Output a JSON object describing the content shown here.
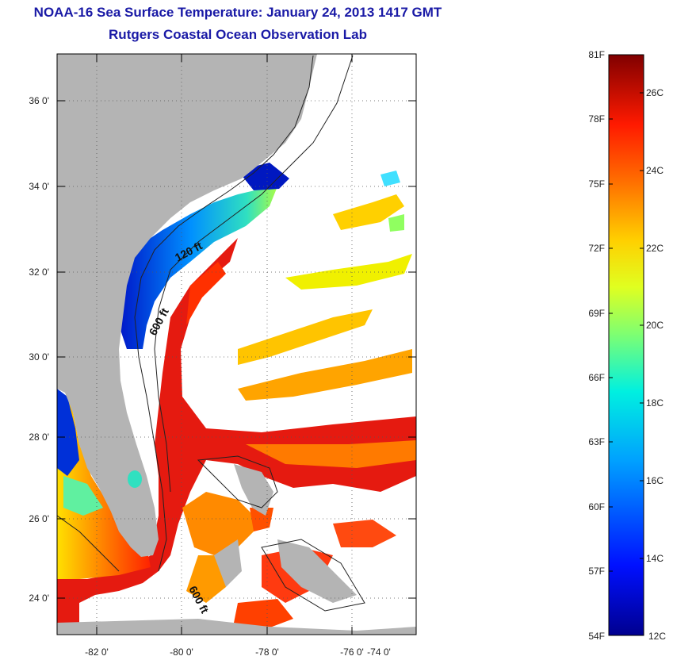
{
  "title": "NOAA-16 Sea Surface Temperature:  January 24, 2013 1417 GMT",
  "subtitle": "Rutgers Coastal Ocean Observation Lab",
  "map": {
    "lat_labels": [
      "36 0'",
      "34 0'",
      "32 0'",
      "30 0'",
      "28 0'",
      "26 0'",
      "24 0'"
    ],
    "lon_labels": [
      "-82 0'",
      "-80 0'",
      "-78 0'",
      "-76 0'",
      "-74 0'"
    ],
    "isobath_labels": [
      "120 ft",
      "600 ft",
      "600 ft"
    ],
    "colors": {
      "land": "#b4b4b4",
      "cloud": "#ffffff",
      "water_warm": "#e31a1c",
      "water_cold": "#0a30d0"
    }
  },
  "colorbar": {
    "f_labels": [
      "81F",
      "78F",
      "75F",
      "72F",
      "69F",
      "66F",
      "63F",
      "60F",
      "57F",
      "54F"
    ],
    "c_labels": [
      "26C",
      "24C",
      "22C",
      "20C",
      "18C",
      "16C",
      "14C",
      "12C"
    ]
  }
}
